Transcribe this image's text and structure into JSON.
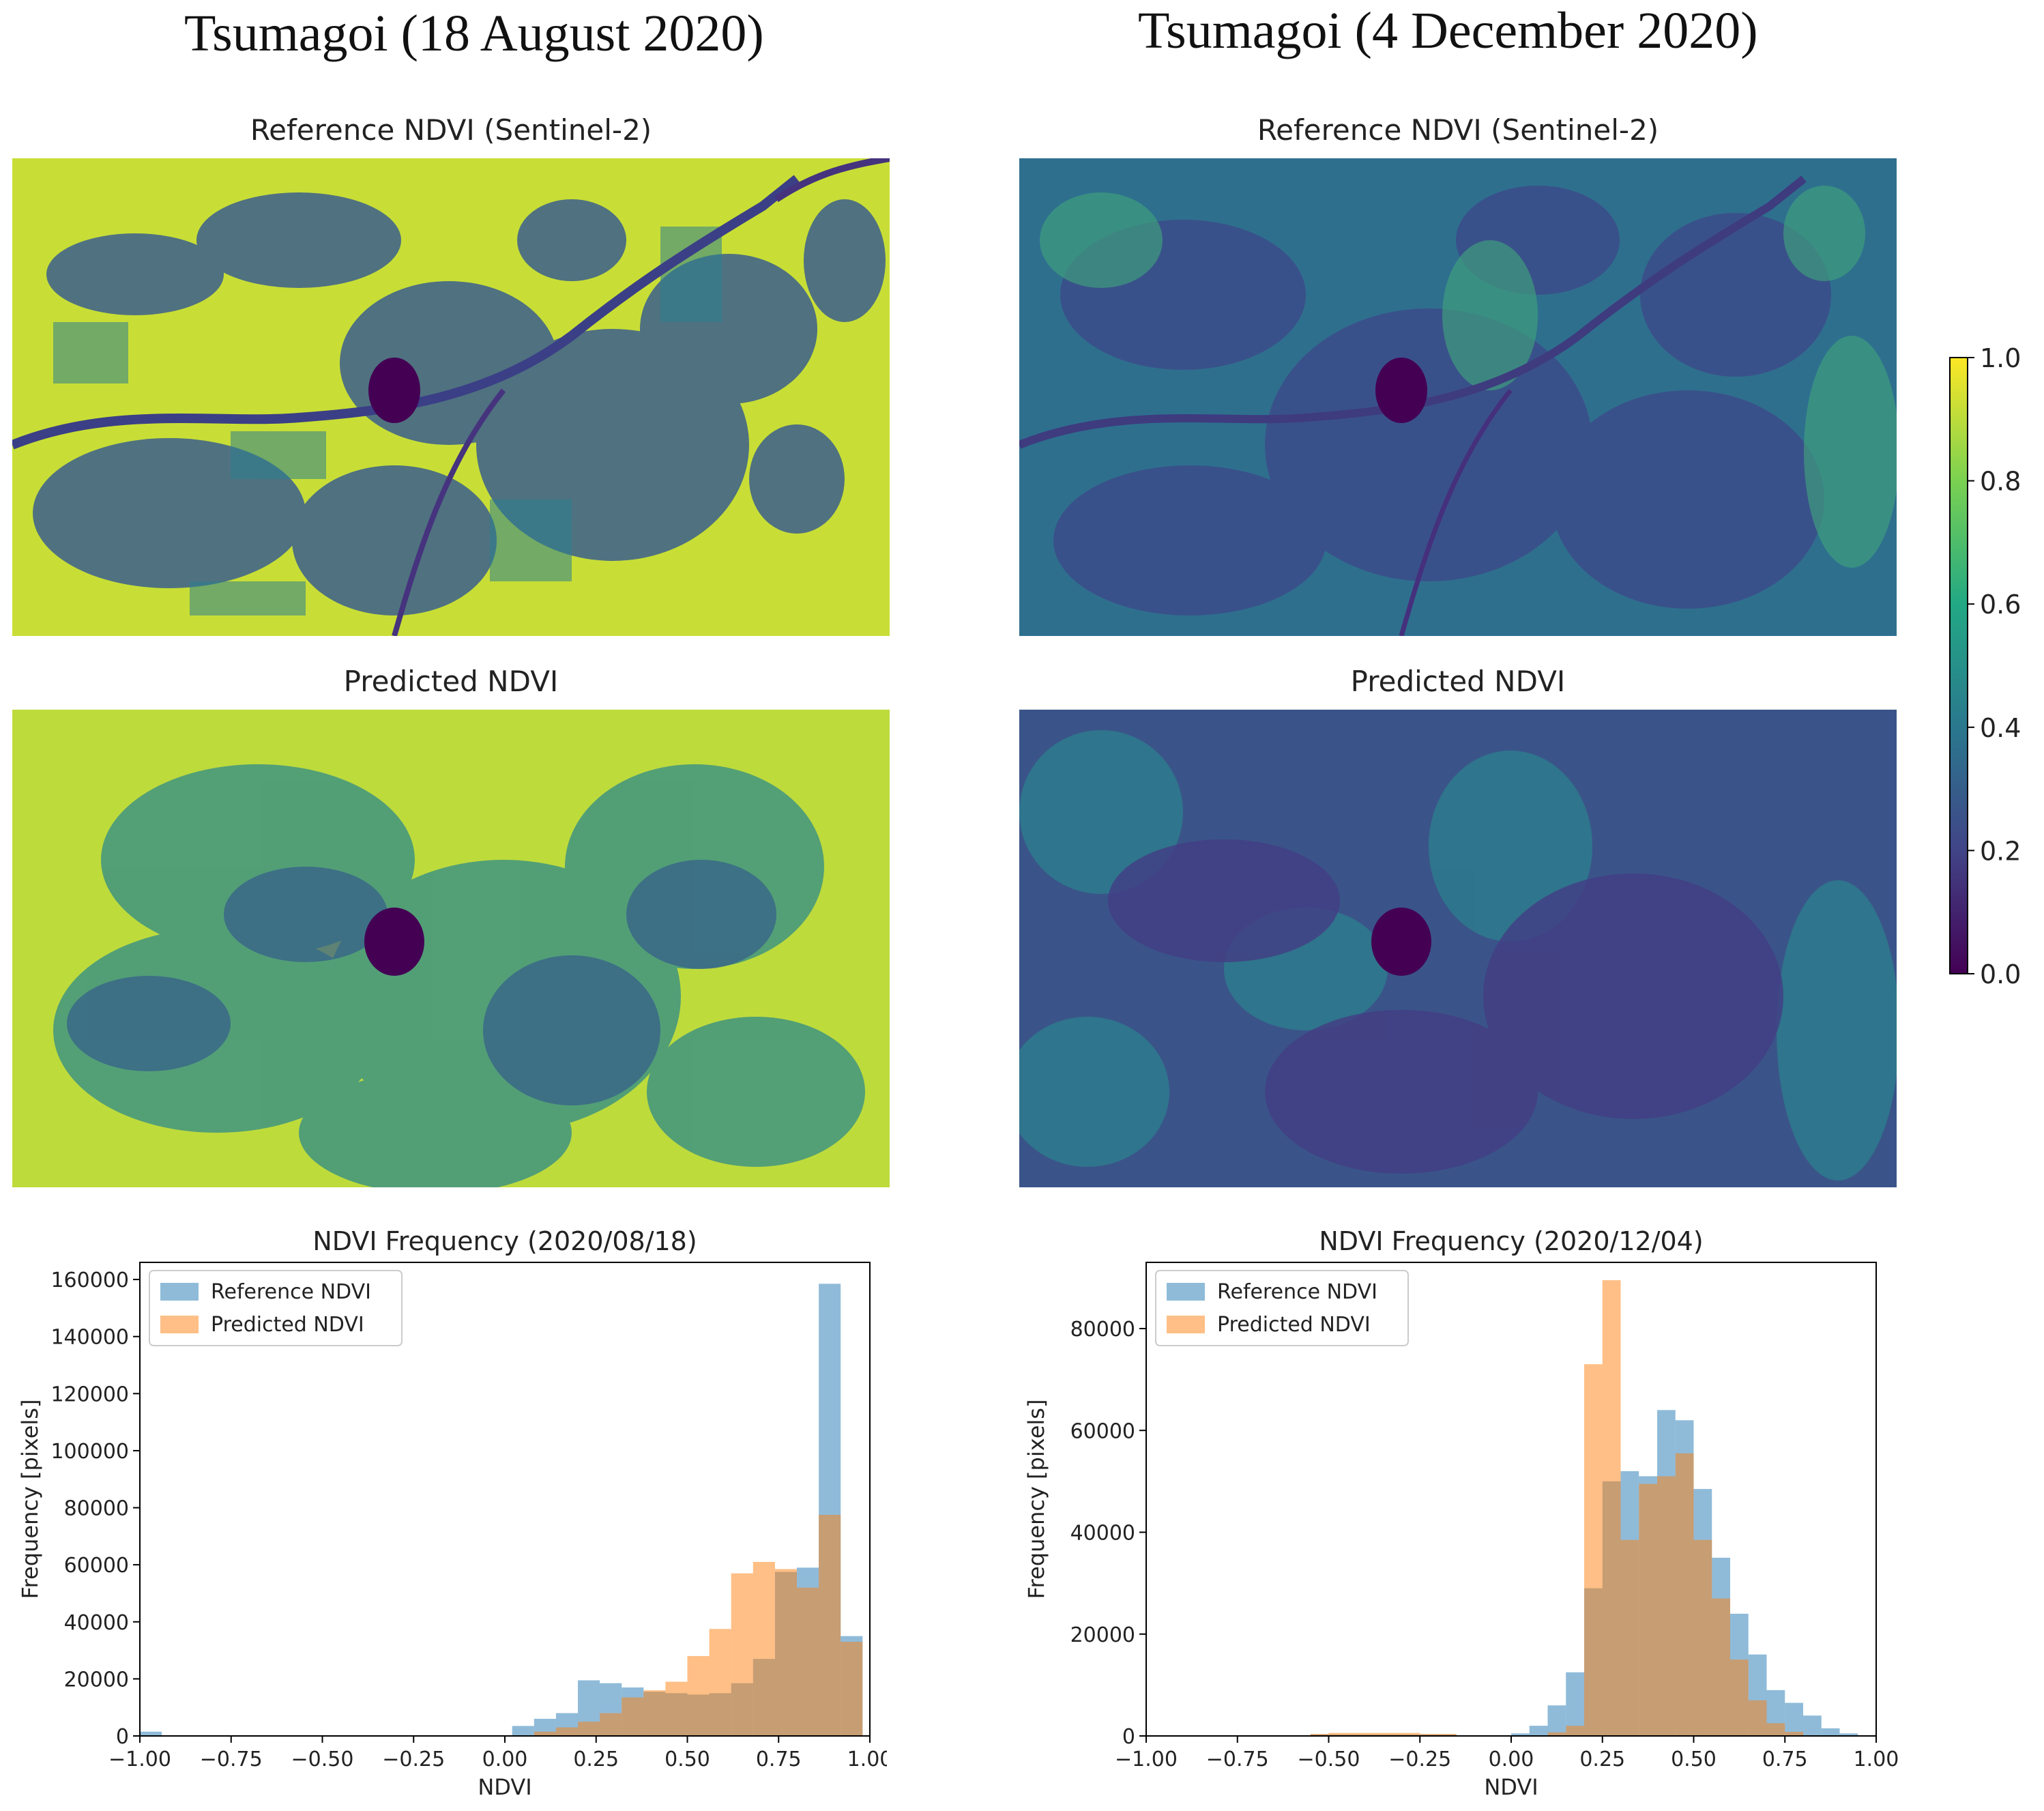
{
  "figure": {
    "left_site_title": "Tsumagoi (18 August 2020)",
    "right_site_title": "Tsumagoi (4 December 2020)"
  },
  "panels": {
    "left": {
      "reference_title": "Reference NDVI (Sentinel-2)",
      "predicted_title": "Predicted NDVI"
    },
    "right": {
      "reference_title": "Reference NDVI (Sentinel-2)",
      "predicted_title": "Predicted NDVI"
    }
  },
  "colorbar": {
    "colormap": "viridis",
    "colors": [
      "#440154",
      "#414487",
      "#2a788e",
      "#22a884",
      "#7ad151",
      "#fde725"
    ],
    "ticks": [
      "0.0",
      "0.2",
      "0.4",
      "0.6",
      "0.8",
      "1.0"
    ],
    "range": [
      0,
      1
    ]
  },
  "chart_data": [
    {
      "type": "bar",
      "title": "NDVI Frequency (2020/08/18)",
      "xlabel": "NDVI",
      "ylabel": "Frequency [pixels]",
      "xlim": [
        -1.0,
        1.0
      ],
      "ylim": [
        0,
        166000
      ],
      "xticks": [
        "−1.00",
        "−0.75",
        "−0.50",
        "−0.25",
        "0.00",
        "0.25",
        "0.50",
        "0.75",
        "1.00"
      ],
      "yticks": [
        "0",
        "20000",
        "40000",
        "60000",
        "80000",
        "100000",
        "120000",
        "140000",
        "160000"
      ],
      "legend": "top-left",
      "bin_width": 0.06,
      "series": [
        {
          "name": "Reference NDVI",
          "color": "#1f77b4",
          "bins": [
            [
              -1.0,
              1500
            ],
            [
              0.02,
              3500
            ],
            [
              0.08,
              6000
            ],
            [
              0.14,
              8000
            ],
            [
              0.2,
              19500
            ],
            [
              0.26,
              18500
            ],
            [
              0.32,
              17000
            ],
            [
              0.38,
              15500
            ],
            [
              0.44,
              15000
            ],
            [
              0.5,
              14500
            ],
            [
              0.56,
              15000
            ],
            [
              0.62,
              18500
            ],
            [
              0.68,
              27000
            ],
            [
              0.74,
              57500
            ],
            [
              0.8,
              59000
            ],
            [
              0.86,
              158500
            ],
            [
              0.92,
              35000
            ]
          ]
        },
        {
          "name": "Predicted NDVI",
          "color": "#ff7f0e",
          "bins": [
            [
              0.08,
              1500
            ],
            [
              0.14,
              3000
            ],
            [
              0.2,
              5000
            ],
            [
              0.26,
              8000
            ],
            [
              0.32,
              13500
            ],
            [
              0.38,
              16000
            ],
            [
              0.44,
              19000
            ],
            [
              0.5,
              28000
            ],
            [
              0.56,
              37500
            ],
            [
              0.62,
              57000
            ],
            [
              0.68,
              61000
            ],
            [
              0.74,
              58500
            ],
            [
              0.8,
              52000
            ],
            [
              0.86,
              77500
            ],
            [
              0.92,
              33000
            ]
          ]
        }
      ]
    },
    {
      "type": "bar",
      "title": "NDVI Frequency (2020/12/04)",
      "xlabel": "NDVI",
      "ylabel": "Frequency [pixels]",
      "xlim": [
        -1.0,
        1.0
      ],
      "ylim": [
        0,
        93000
      ],
      "xticks": [
        "−1.00",
        "−0.75",
        "−0.50",
        "−0.25",
        "0.00",
        "0.25",
        "0.50",
        "0.75",
        "1.00"
      ],
      "yticks": [
        "0",
        "20000",
        "40000",
        "60000",
        "80000"
      ],
      "legend": "top-left",
      "bin_width": 0.05,
      "series": [
        {
          "name": "Reference NDVI",
          "color": "#1f77b4",
          "bins": [
            [
              -0.55,
              300
            ],
            [
              -0.5,
              300
            ],
            [
              -0.45,
              300
            ],
            [
              -0.4,
              300
            ],
            [
              -0.35,
              300
            ],
            [
              -0.3,
              300
            ],
            [
              -0.25,
              300
            ],
            [
              -0.2,
              300
            ],
            [
              0.0,
              500
            ],
            [
              0.05,
              2000
            ],
            [
              0.1,
              6000
            ],
            [
              0.15,
              12500
            ],
            [
              0.2,
              29000
            ],
            [
              0.25,
              50000
            ],
            [
              0.3,
              52000
            ],
            [
              0.35,
              51000
            ],
            [
              0.4,
              64000
            ],
            [
              0.45,
              62000
            ],
            [
              0.5,
              48500
            ],
            [
              0.55,
              35000
            ],
            [
              0.6,
              24000
            ],
            [
              0.65,
              16000
            ],
            [
              0.7,
              9000
            ],
            [
              0.75,
              6500
            ],
            [
              0.8,
              4000
            ],
            [
              0.85,
              1500
            ],
            [
              0.9,
              500
            ]
          ]
        },
        {
          "name": "Predicted NDVI",
          "color": "#ff7f0e",
          "bins": [
            [
              -0.55,
              400
            ],
            [
              -0.5,
              600
            ],
            [
              -0.45,
              600
            ],
            [
              -0.4,
              600
            ],
            [
              -0.35,
              600
            ],
            [
              -0.3,
              600
            ],
            [
              -0.25,
              400
            ],
            [
              -0.2,
              400
            ],
            [
              0.1,
              700
            ],
            [
              0.15,
              2000
            ],
            [
              0.2,
              73000
            ],
            [
              0.25,
              89500
            ],
            [
              0.3,
              38500
            ],
            [
              0.35,
              49500
            ],
            [
              0.4,
              51000
            ],
            [
              0.45,
              55500
            ],
            [
              0.5,
              38500
            ],
            [
              0.55,
              27000
            ],
            [
              0.6,
              15000
            ],
            [
              0.65,
              7000
            ],
            [
              0.7,
              2500
            ],
            [
              0.75,
              800
            ]
          ]
        }
      ]
    }
  ]
}
